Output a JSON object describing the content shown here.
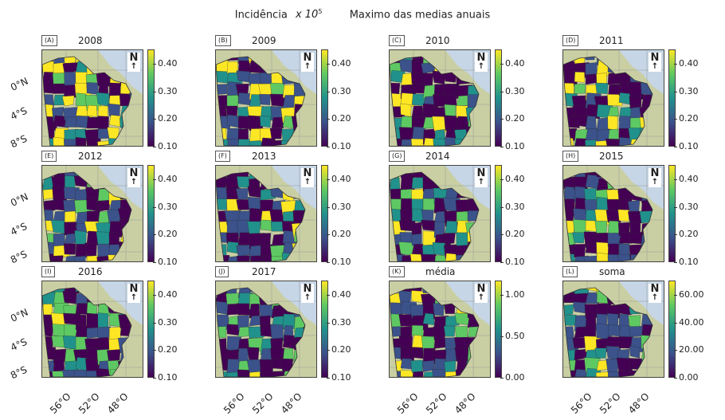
{
  "title": {
    "incidence_label": "Incidência",
    "incidence_factor": "x 10",
    "incidence_exponent": "5",
    "subtitle": "Maximo das medias anuais"
  },
  "colors": {
    "low": "#440154",
    "mid_low": "#3b528b",
    "mid": "#21918c",
    "mid_high": "#5ec962",
    "high": "#fde725",
    "land_background": "#c9cfa3",
    "ocean": "#c6d6e6"
  },
  "lat_labels": [
    "0°N",
    "4°S",
    "8°S"
  ],
  "lon_labels": [
    "56°O",
    "52°O",
    "48°O"
  ],
  "north_symbol": "N",
  "panels": [
    {
      "letter": "(A)",
      "title": "2008",
      "ticks": [
        "0.40",
        "0.30",
        "0.20",
        "0.10"
      ],
      "bright_share": 0.35
    },
    {
      "letter": "(B)",
      "title": "2009",
      "ticks": [
        "0.40",
        "0.30",
        "0.20",
        "0.10"
      ],
      "bright_share": 0.4
    },
    {
      "letter": "(C)",
      "title": "2010",
      "ticks": [
        "0.40",
        "0.30",
        "0.20",
        "0.10"
      ],
      "bright_share": 0.3
    },
    {
      "letter": "(D)",
      "title": "2011",
      "ticks": [
        "0.40",
        "0.30",
        "0.20",
        "0.10"
      ],
      "bright_share": 0.3
    },
    {
      "letter": "(E)",
      "title": "2012",
      "ticks": [
        "0.40",
        "0.30",
        "0.20",
        "0.10"
      ],
      "bright_share": 0.25
    },
    {
      "letter": "(F)",
      "title": "2013",
      "ticks": [
        "0.40",
        "0.30",
        "0.20",
        "0.10"
      ],
      "bright_share": 0.15
    },
    {
      "letter": "(G)",
      "title": "2014",
      "ticks": [
        "0.40",
        "0.30",
        "0.20",
        "0.10"
      ],
      "bright_share": 0.15
    },
    {
      "letter": "(H)",
      "title": "2015",
      "ticks": [
        "0.40",
        "0.30",
        "0.20",
        "0.10"
      ],
      "bright_share": 0.15
    },
    {
      "letter": "(I)",
      "title": "2016",
      "ticks": [
        "0.40",
        "0.30",
        "0.20",
        "0.10"
      ],
      "bright_share": 0.15
    },
    {
      "letter": "(J)",
      "title": "2017",
      "ticks": [
        "0.40",
        "0.30",
        "0.20",
        "0.10"
      ],
      "bright_share": 0.1
    },
    {
      "letter": "(K)",
      "title": "média",
      "ticks": [
        "1.00",
        "0.50",
        "0.00"
      ],
      "bright_share": 0.1
    },
    {
      "letter": "(L)",
      "title": "soma",
      "ticks": [
        "60.00",
        "40.00",
        "20.00",
        "0.00"
      ],
      "bright_share": 0.1
    }
  ]
}
